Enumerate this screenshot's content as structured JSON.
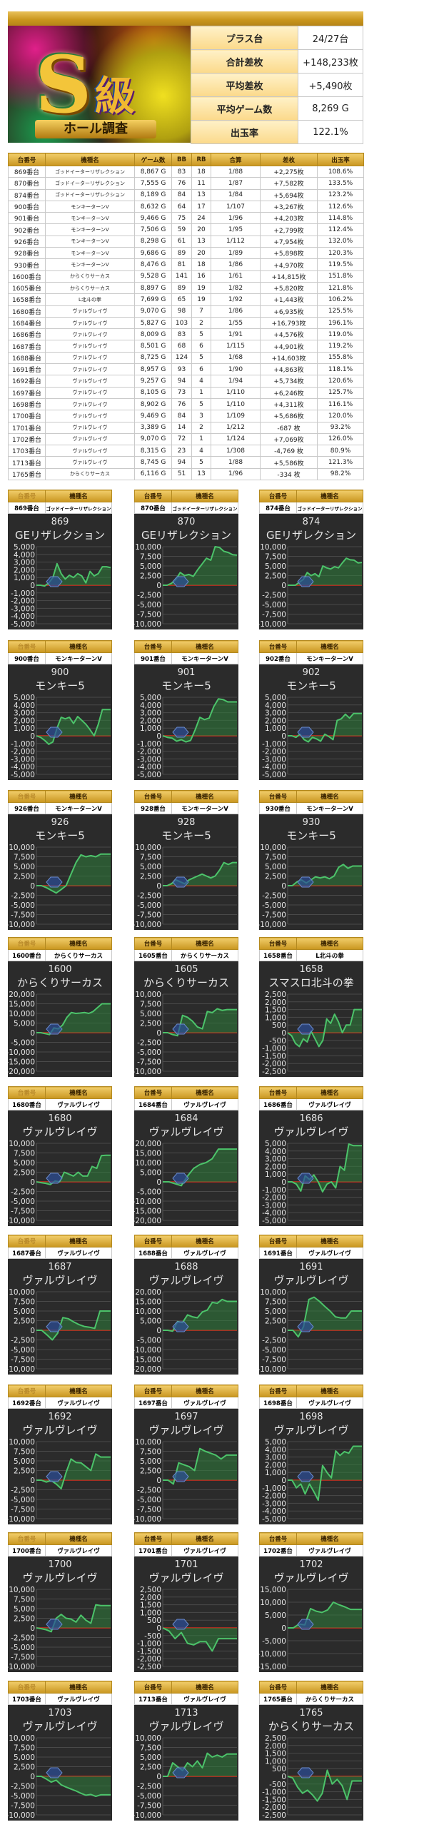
{
  "banner": {
    "logo_text": "S級",
    "ribbon_text": "ホール調査"
  },
  "summary": [
    {
      "label": "プラス台",
      "value": "24/27台"
    },
    {
      "label": "合計差枚",
      "value": "+148,233枚"
    },
    {
      "label": "平均差枚",
      "value": "+5,490枚"
    },
    {
      "label": "平均ゲーム数",
      "value": "8,269 G"
    },
    {
      "label": "出玉率",
      "value": "122.1%"
    }
  ],
  "table": {
    "headers": [
      "台番号",
      "機種名",
      "ゲーム数",
      "BB",
      "RB",
      "合算",
      "差枚",
      "出玉率"
    ],
    "rows": [
      [
        "869番台",
        "ゴッドイーターリザレクション",
        "8,867 G",
        "83",
        "18",
        "1/88",
        "+2,275枚",
        "108.6%"
      ],
      [
        "870番台",
        "ゴッドイーターリザレクション",
        "7,555 G",
        "76",
        "11",
        "1/87",
        "+7,582枚",
        "133.5%"
      ],
      [
        "874番台",
        "ゴッドイーターリザレクション",
        "8,189 G",
        "84",
        "13",
        "1/84",
        "+5,694枚",
        "123.2%"
      ],
      [
        "900番台",
        "モンキーターンV",
        "8,632 G",
        "64",
        "17",
        "1/107",
        "+3,267枚",
        "112.6%"
      ],
      [
        "901番台",
        "モンキーターンV",
        "9,466 G",
        "75",
        "24",
        "1/96",
        "+4,203枚",
        "114.8%"
      ],
      [
        "902番台",
        "モンキーターンV",
        "7,506 G",
        "59",
        "20",
        "1/95",
        "+2,799枚",
        "112.4%"
      ],
      [
        "926番台",
        "モンキーターンV",
        "8,298 G",
        "61",
        "13",
        "1/112",
        "+7,954枚",
        "132.0%"
      ],
      [
        "928番台",
        "モンキーターンV",
        "9,686 G",
        "89",
        "20",
        "1/89",
        "+5,898枚",
        "120.3%"
      ],
      [
        "930番台",
        "モンキーターンV",
        "8,476 G",
        "81",
        "18",
        "1/86",
        "+4,970枚",
        "119.5%"
      ],
      [
        "1600番台",
        "からくりサーカス",
        "9,528 G",
        "141",
        "16",
        "1/61",
        "+14,815枚",
        "151.8%"
      ],
      [
        "1605番台",
        "からくりサーカス",
        "8,897 G",
        "89",
        "19",
        "1/82",
        "+5,820枚",
        "121.8%"
      ],
      [
        "1658番台",
        "L北斗の拳",
        "7,699 G",
        "65",
        "19",
        "1/92",
        "+1,443枚",
        "106.2%"
      ],
      [
        "1680番台",
        "ヴァルヴレイヴ",
        "9,070 G",
        "98",
        "7",
        "1/86",
        "+6,935枚",
        "125.5%"
      ],
      [
        "1684番台",
        "ヴァルヴレイヴ",
        "5,827 G",
        "103",
        "2",
        "1/55",
        "+16,793枚",
        "196.1%"
      ],
      [
        "1686番台",
        "ヴァルヴレイヴ",
        "8,009 G",
        "83",
        "5",
        "1/91",
        "+4,576枚",
        "119.0%"
      ],
      [
        "1687番台",
        "ヴァルヴレイヴ",
        "8,501 G",
        "68",
        "6",
        "1/115",
        "+4,901枚",
        "119.2%"
      ],
      [
        "1688番台",
        "ヴァルヴレイヴ",
        "8,725 G",
        "124",
        "5",
        "1/68",
        "+14,603枚",
        "155.8%"
      ],
      [
        "1691番台",
        "ヴァルヴレイヴ",
        "8,957 G",
        "93",
        "6",
        "1/90",
        "+4,863枚",
        "118.1%"
      ],
      [
        "1692番台",
        "ヴァルヴレイヴ",
        "9,257 G",
        "94",
        "4",
        "1/94",
        "+5,734枚",
        "120.6%"
      ],
      [
        "1697番台",
        "ヴァルヴレイヴ",
        "8,105 G",
        "73",
        "1",
        "1/110",
        "+6,246枚",
        "125.7%"
      ],
      [
        "1698番台",
        "ヴァルヴレイヴ",
        "8,902 G",
        "76",
        "5",
        "1/110",
        "+4,311枚",
        "116.1%"
      ],
      [
        "1700番台",
        "ヴァルヴレイヴ",
        "9,469 G",
        "84",
        "3",
        "1/109",
        "+5,686枚",
        "120.0%"
      ],
      [
        "1701番台",
        "ヴァルヴレイヴ",
        "3,389 G",
        "14",
        "2",
        "1/212",
        "-687 枚",
        "93.2%"
      ],
      [
        "1702番台",
        "ヴァルヴレイヴ",
        "9,070 G",
        "72",
        "1",
        "1/124",
        "+7,069枚",
        "126.0%"
      ],
      [
        "1703番台",
        "ヴァルヴレイヴ",
        "8,315 G",
        "23",
        "4",
        "1/308",
        "-4,769 枚",
        "80.9%"
      ],
      [
        "1713番台",
        "ヴァルヴレイヴ",
        "8,745 G",
        "94",
        "5",
        "1/88",
        "+5,586枚",
        "121.3%"
      ],
      [
        "1765番台",
        "からくりサーカス",
        "6,116 G",
        "51",
        "13",
        "1/96",
        "-334 枚",
        "98.2%"
      ]
    ]
  },
  "card_headers": {
    "number": "台番号",
    "machine": "機種名"
  },
  "colors": {
    "positive": "#2a2ad0",
    "negative": "#e02020",
    "line": "#4cc36a",
    "zero_line": "#d03020",
    "chart_bg": "#2b2b2b",
    "gold": "#c9961f"
  },
  "chart_data": [
    {
      "type": "area",
      "number": "869番台",
      "machine": "ゴッドイーターリザレクション",
      "title": [
        "869",
        "GEリザレクション"
      ],
      "ylim": [
        -5000,
        5000
      ],
      "step": 1000,
      "values": [
        0,
        0,
        -100,
        300,
        1000,
        2800,
        1500,
        800,
        1300,
        1000,
        1500,
        1200,
        300,
        1800,
        1200,
        1500,
        2400,
        2400,
        2275
      ]
    },
    {
      "type": "area",
      "number": "870番台",
      "machine": "ゴッドイーターリザレクション",
      "title": [
        "870",
        "GEリザレクション"
      ],
      "ylim": [
        -10000,
        10000
      ],
      "step": 2500,
      "values": [
        0,
        0,
        500,
        1500,
        3300,
        2500,
        2800,
        2300,
        4000,
        5500,
        7000,
        6500,
        10000,
        9800,
        8800,
        8500,
        7900,
        7800
      ]
    },
    {
      "type": "area",
      "number": "874番台",
      "machine": "ゴッドイーターリザレクション",
      "title": [
        "874",
        "GEリザレクション"
      ],
      "ylim": [
        -10000,
        10000
      ],
      "step": 2500,
      "values": [
        0,
        0,
        0,
        800,
        1500,
        3300,
        2500,
        3000,
        2200,
        5000,
        4500,
        4200,
        4800,
        4500,
        5800,
        7000,
        6600,
        6500,
        5800,
        5900
      ]
    },
    {
      "type": "area",
      "number": "900番台",
      "machine": "モンキーターンV",
      "title": [
        "900",
        "モンキー5"
      ],
      "ylim": [
        -5000,
        5000
      ],
      "step": 1000,
      "values": [
        0,
        -200,
        -600,
        -1100,
        -800,
        1000,
        2400,
        2200,
        2400,
        1600,
        2500,
        2000,
        1500,
        800,
        0,
        1500,
        3400,
        3400,
        3400
      ]
    },
    {
      "type": "area",
      "number": "901番台",
      "machine": "モンキーターンV",
      "title": [
        "901",
        "モンキー5"
      ],
      "ylim": [
        -5000,
        5000
      ],
      "step": 1000,
      "values": [
        0,
        -200,
        -300,
        -700,
        -500,
        -800,
        -600,
        800,
        2400,
        2100,
        2300,
        3800,
        4800,
        4700,
        4400,
        4400,
        4400
      ]
    },
    {
      "type": "area",
      "number": "902番台",
      "machine": "モンキーターンV",
      "title": [
        "902",
        "モンキー5"
      ],
      "ylim": [
        -5000,
        5000
      ],
      "step": 1000,
      "values": [
        0,
        0,
        -200,
        200,
        -500,
        -800,
        -200,
        -400,
        -700,
        200,
        -100,
        -500,
        2000,
        2200,
        2800,
        2300,
        2900,
        2900,
        2900
      ]
    },
    {
      "type": "area",
      "number": "926番台",
      "machine": "モンキーターンV",
      "title": [
        "926",
        "モンキー5"
      ],
      "ylim": [
        -10000,
        10000
      ],
      "step": 2500,
      "values": [
        0,
        0,
        -500,
        -1200,
        -1900,
        -1000,
        0,
        3000,
        6000,
        8000,
        7500,
        7800,
        7500,
        8200,
        8200,
        8200
      ]
    },
    {
      "type": "area",
      "number": "928番台",
      "machine": "モンキーターンV",
      "title": [
        "928",
        "モンキー5"
      ],
      "ylim": [
        -10000,
        10000
      ],
      "step": 2500,
      "values": [
        0,
        0,
        500,
        1500,
        1000,
        500,
        1500,
        2000,
        2500,
        3000,
        2500,
        2000,
        2500,
        4000,
        6000,
        5500,
        6000,
        6000
      ]
    },
    {
      "type": "area",
      "number": "930番台",
      "machine": "モンキーターンV",
      "title": [
        "930",
        "モンキー5"
      ],
      "ylim": [
        -10000,
        10000
      ],
      "step": 2500,
      "values": [
        0,
        0,
        1000,
        1500,
        700,
        1500,
        2300,
        2000,
        2300,
        1800,
        2500,
        4800,
        5500,
        4500,
        5100,
        5100,
        5100
      ]
    },
    {
      "type": "area",
      "number": "1600番台",
      "machine": "からくりサーカス",
      "title": [
        "1600",
        "からくりサーカス"
      ],
      "ylim": [
        -20000,
        20000
      ],
      "step": 5000,
      "values": [
        0,
        0,
        -500,
        -1000,
        2500,
        2000,
        4000,
        8000,
        10500,
        10000,
        10200,
        10500,
        10000,
        11000,
        13000,
        15000,
        15000,
        15000
      ]
    },
    {
      "type": "area",
      "number": "1605番台",
      "machine": "からくりサーカス",
      "title": [
        "1605",
        "からくりサーカス"
      ],
      "ylim": [
        -10000,
        10000
      ],
      "step": 2500,
      "values": [
        0,
        0,
        -500,
        -800,
        4500,
        4000,
        3000,
        1500,
        1000,
        5500,
        5200,
        6200,
        5800,
        6000,
        6000,
        6000
      ]
    },
    {
      "type": "area",
      "number": "1658番台",
      "machine": "L北斗の拳",
      "title": [
        "1658",
        "スマスロ北斗の拳"
      ],
      "ylim": [
        -2500,
        2500
      ],
      "step": 500,
      "values": [
        0,
        -200,
        -700,
        -900,
        -400,
        -600,
        100,
        -400,
        -900,
        -500,
        900,
        600,
        1200,
        700,
        0,
        500,
        500,
        1500,
        1500,
        1500
      ]
    },
    {
      "type": "area",
      "number": "1680番台",
      "machine": "ヴァルヴレイヴ",
      "title": [
        "1680",
        "ヴァルヴレイヴ"
      ],
      "ylim": [
        -10000,
        10000
      ],
      "step": 2500,
      "values": [
        0,
        -200,
        -400,
        -700,
        200,
        0,
        2500,
        2000,
        1500,
        2500,
        1500,
        1500,
        4000,
        3500,
        6800,
        6900,
        6900
      ]
    },
    {
      "type": "area",
      "number": "1684番台",
      "machine": "ヴァルヴレイヴ",
      "title": [
        "1684",
        "ヴァルヴレイヴ"
      ],
      "ylim": [
        -20000,
        20000
      ],
      "step": 5000,
      "values": [
        0,
        0,
        -1000,
        -2000,
        3000,
        7000,
        9000,
        10000,
        12000,
        17000,
        17000,
        17000,
        17000
      ]
    },
    {
      "type": "area",
      "number": "1686番台",
      "machine": "ヴァルヴレイヴ",
      "title": [
        "1686",
        "ヴァルヴレイヴ"
      ],
      "ylim": [
        -5000,
        5000
      ],
      "step": 1000,
      "values": [
        0,
        0,
        -300,
        -1200,
        800,
        300,
        900,
        0,
        -1300,
        -300,
        0,
        -800,
        2000,
        1500,
        4900,
        4700,
        4700,
        4700
      ]
    },
    {
      "type": "area",
      "number": "1687番台",
      "machine": "ヴァルヴレイヴ",
      "title": [
        "1687",
        "ヴァルヴレイヴ"
      ],
      "ylim": [
        -10000,
        10000
      ],
      "step": 2500,
      "values": [
        0,
        0,
        -1200,
        -2500,
        -800,
        3300,
        3000,
        2200,
        1500,
        1000,
        800,
        500,
        5000,
        5000,
        5000
      ]
    },
    {
      "type": "area",
      "number": "1688番台",
      "machine": "ヴァルヴレイヴ",
      "title": [
        "1688",
        "ヴァルヴレイヴ"
      ],
      "ylim": [
        -20000,
        20000
      ],
      "step": 5000,
      "values": [
        0,
        0,
        -500,
        4500,
        4000,
        8000,
        7000,
        6500,
        9500,
        10500,
        14500,
        14000,
        16000,
        15000,
        15000,
        15000
      ]
    },
    {
      "type": "area",
      "number": "1691番台",
      "machine": "ヴァルヴレイヴ",
      "title": [
        "1691",
        "ヴァルヴレイヴ"
      ],
      "ylim": [
        -10000,
        10000
      ],
      "step": 2500,
      "values": [
        0,
        0,
        -1700,
        1000,
        8000,
        8600,
        7500,
        6200,
        5000,
        3500,
        3200,
        3200,
        5000,
        5000,
        5000
      ]
    },
    {
      "type": "area",
      "number": "1692番台",
      "machine": "ヴァルヴレイヴ",
      "title": [
        "1692",
        "ヴァルヴレイヴ"
      ],
      "ylim": [
        -10000,
        10000
      ],
      "step": 2500,
      "values": [
        0,
        0,
        -500,
        -100,
        -1000,
        -2200,
        2000,
        5500,
        4600,
        4500,
        3500,
        2500,
        6800,
        6000,
        6000,
        6000
      ]
    },
    {
      "type": "area",
      "number": "1697番台",
      "machine": "ヴァルヴレイヴ",
      "title": [
        "1697",
        "ヴァルヴレイヴ"
      ],
      "ylim": [
        -10000,
        10000
      ],
      "step": 2500,
      "values": [
        0,
        0,
        -1000,
        4500,
        4000,
        3500,
        2500,
        8200,
        7500,
        7000,
        6500,
        5500,
        6500,
        6500,
        6500
      ]
    },
    {
      "type": "area",
      "number": "1698番台",
      "machine": "ヴァルヴレイヴ",
      "title": [
        "1698",
        "ヴァルヴレイヴ"
      ],
      "ylim": [
        -5000,
        5000
      ],
      "step": 1000,
      "values": [
        0,
        0,
        -1000,
        -500,
        -1800,
        -500,
        -1500,
        -2600,
        1900,
        1000,
        300,
        3800,
        3200,
        3700,
        3500,
        4400,
        4400,
        4400
      ]
    },
    {
      "type": "area",
      "number": "1700番台",
      "machine": "ヴァルヴレイヴ",
      "title": [
        "1700",
        "ヴァルヴレイヴ"
      ],
      "ylim": [
        -10000,
        10000
      ],
      "step": 2500,
      "values": [
        0,
        -200,
        -500,
        -1000,
        2500,
        3500,
        2500,
        2300,
        1500,
        3300,
        2000,
        1200,
        6000,
        5800,
        5800,
        5800
      ]
    },
    {
      "type": "area",
      "number": "1701番台",
      "machine": "ヴァルヴレイヴ",
      "title": [
        "1701",
        "ヴァルヴレイヴ"
      ],
      "ylim": [
        -2500,
        2500
      ],
      "step": 500,
      "values": [
        0,
        -200,
        -700,
        -300,
        -1000,
        -1100,
        -900,
        -900,
        -1500,
        -700,
        -700,
        -700,
        -700
      ]
    },
    {
      "type": "area",
      "number": "1702番台",
      "machine": "ヴァルヴレイヴ",
      "title": [
        "1702",
        "ヴァルヴレイヴ"
      ],
      "ylim": [
        -15000,
        15000
      ],
      "step": 5000,
      "values": [
        0,
        0,
        1500,
        1200,
        7500,
        6500,
        6000,
        7000,
        10000,
        9000,
        8200,
        7200,
        7200,
        7200
      ]
    },
    {
      "type": "area",
      "number": "1703番台",
      "machine": "ヴァルヴレイヴ",
      "title": [
        "1703",
        "ヴァルヴレイヴ"
      ],
      "ylim": [
        -10000,
        10000
      ],
      "step": 2500,
      "values": [
        0,
        0,
        -700,
        -1500,
        -1000,
        -2200,
        -2800,
        -3300,
        -3800,
        -4400,
        -4900,
        -4700,
        -5200,
        -4800,
        -4800,
        -4800
      ]
    },
    {
      "type": "area",
      "number": "1713番台",
      "machine": "ヴァルヴレイヴ",
      "title": [
        "1713",
        "ヴァルヴレイヴ"
      ],
      "ylim": [
        -10000,
        10000
      ],
      "step": 2500,
      "values": [
        0,
        0,
        3500,
        2500,
        1500,
        3500,
        2500,
        4000,
        2200,
        6000,
        5000,
        5500,
        5000,
        5800,
        5800,
        5800
      ]
    },
    {
      "type": "area",
      "number": "1765番台",
      "machine": "からくりサーカス",
      "title": [
        "1765",
        "からくりサーカス"
      ],
      "ylim": [
        -2500,
        2500
      ],
      "step": 500,
      "values": [
        0,
        -100,
        -700,
        -1100,
        -900,
        -1200,
        -1600,
        -1100,
        400,
        -500,
        -200,
        -600,
        -1500,
        -300,
        -300,
        -300
      ]
    }
  ]
}
